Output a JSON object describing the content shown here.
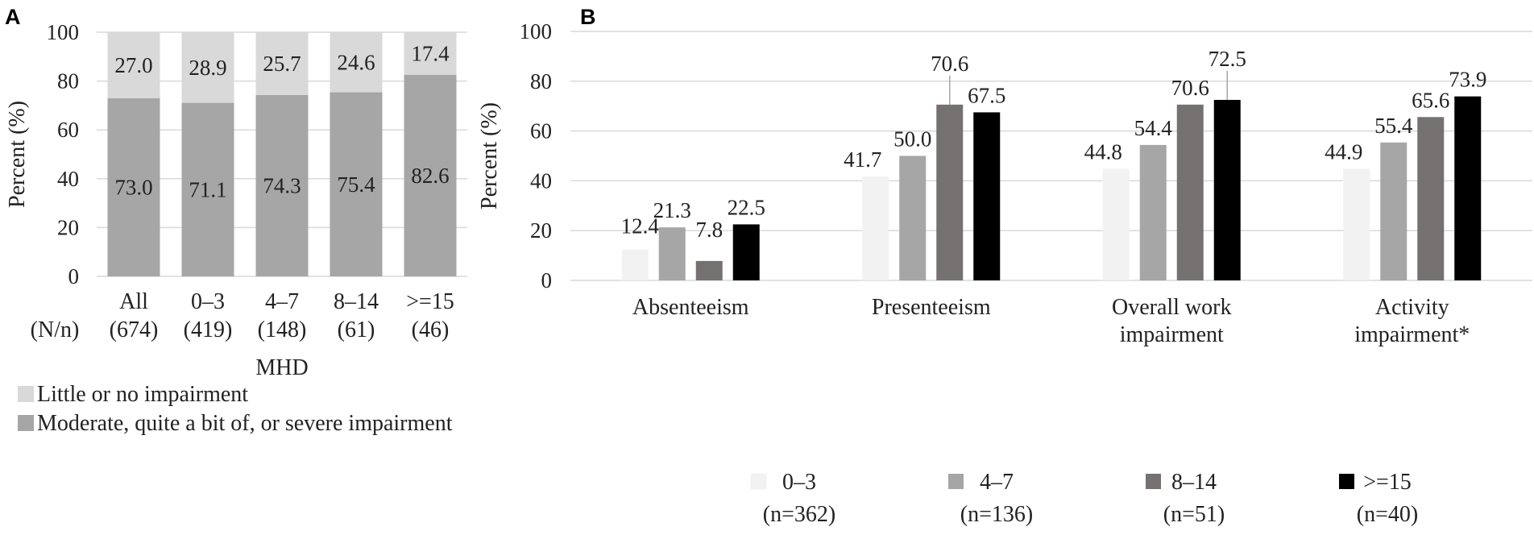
{
  "chart_data": [
    {
      "panel": "A",
      "type": "bar",
      "stacked": true,
      "categories": [
        "All",
        "0–3",
        "4–7",
        "8–14",
        ">=15"
      ],
      "sample_sizes": [
        "(674)",
        "(419)",
        "(148)",
        "(61)",
        "(46)"
      ],
      "sample_label": "(N/n)",
      "series": [
        {
          "name": "Moderate, quite a bit of, or severe impairment",
          "values": [
            73.0,
            71.1,
            74.3,
            75.4,
            82.6
          ],
          "color": "#a6a6a6"
        },
        {
          "name": "Little or no impairment",
          "values": [
            27.0,
            28.9,
            25.7,
            24.6,
            17.4
          ],
          "color": "#d9d9d9"
        }
      ],
      "xlabel": "MHD",
      "ylabel": "Percent (%)",
      "ylim": [
        0,
        100
      ],
      "yticks": [
        0,
        20,
        40,
        60,
        80,
        100
      ],
      "grid": true
    },
    {
      "panel": "B",
      "type": "bar",
      "stacked": false,
      "categories": [
        [
          "Absenteeism"
        ],
        [
          "Presenteeism"
        ],
        [
          "Overall work",
          "impairment"
        ],
        [
          "Activity",
          "impairment*"
        ]
      ],
      "series": [
        {
          "name": "0–3",
          "n": "(n=362)",
          "values": [
            12.4,
            41.7,
            44.8,
            44.9
          ],
          "color": "#f2f2f2"
        },
        {
          "name": "4–7",
          "n": "(n=136)",
          "values": [
            21.3,
            50.0,
            54.4,
            55.4
          ],
          "color": "#a6a6a6"
        },
        {
          "name": "8–14",
          "n": "(n=51)",
          "values": [
            7.8,
            70.6,
            70.6,
            65.6
          ],
          "color": "#767171"
        },
        {
          "name": ">=15",
          "n": "(n=40)",
          "values": [
            22.5,
            67.5,
            72.5,
            73.9
          ],
          "color": "#000000"
        }
      ],
      "ylabel": "Percent (%)",
      "ylim": [
        0,
        100
      ],
      "yticks": [
        0,
        20,
        40,
        60,
        80,
        100
      ],
      "grid": true
    }
  ]
}
